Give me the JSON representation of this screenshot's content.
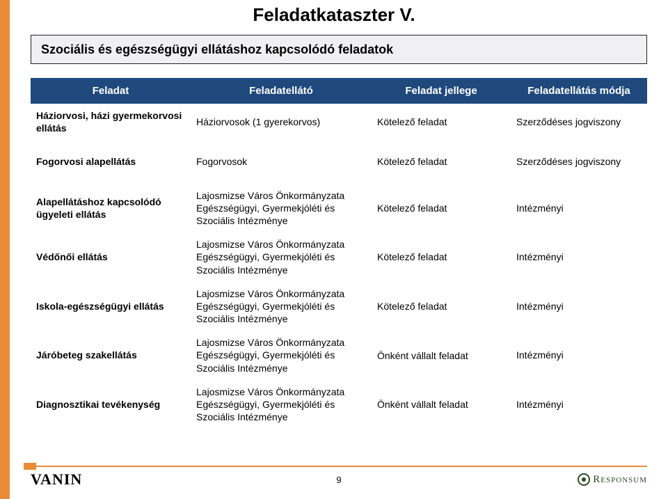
{
  "title": "Feladatkataszter V.",
  "subtitle": "Szociális és egészségügyi ellátáshoz kapcsolódó feladatok",
  "colors": {
    "accent_orange": "#e98c3a",
    "header_blue": "#1f497d",
    "subtitle_bg": "#f0f0f2",
    "text": "#000000",
    "responsum_green": "#2a4a24"
  },
  "columns": {
    "feladat": "Feladat",
    "ellato": "Feladatellátó",
    "jellege": "Feladat jellege",
    "modja": "Feladatellátás módja"
  },
  "rows": [
    {
      "feladat": "Háziorvosi, házi gyermekorvosi ellátás",
      "ellato": "Háziorvosok (1 gyerekorvos)",
      "jellege": "Kötelező feladat",
      "modja": "Szerződéses jogviszony",
      "spaced": false
    },
    {
      "feladat": "Fogorvosi alapellátás",
      "ellato": "Fogorvosok",
      "jellege": "Kötelező feladat",
      "modja": "Szerződéses jogviszony",
      "spaced": true
    },
    {
      "feladat": "Alapellátáshoz kapcsolódó ügyeleti ellátás",
      "ellato": "Lajosmizse Város Önkormányzata Egészségügyi, Gyermekjóléti és Szociális Intézménye",
      "jellege": "Kötelező feladat",
      "modja": "Intézményi",
      "spaced": true
    },
    {
      "feladat": "Védőnői ellátás",
      "ellato": "Lajosmizse Város Önkormányzata Egészségügyi, Gyermekjóléti és Szociális Intézménye",
      "jellege": "Kötelező feladat",
      "modja": "Intézményi",
      "spaced": false
    },
    {
      "feladat": "Iskola-egészségügyi ellátás",
      "ellato": "Lajosmizse Város Önkormányzata Egészségügyi, Gyermekjóléti és Szociális Intézménye",
      "jellege": "Kötelező feladat",
      "modja": "Intézményi",
      "spaced": false
    },
    {
      "feladat": "Járóbeteg szakellátás",
      "ellato": "Lajosmizse Város Önkormányzata Egészségügyi, Gyermekjóléti és Szociális Intézménye",
      "jellege": "Önként vállalt feladat",
      "modja": "Intézményi",
      "spaced": false
    },
    {
      "feladat": "Diagnosztikai tevékenység",
      "ellato": "Lajosmizse Város Önkormányzata Egészségügyi, Gyermekjóléti és Szociális Intézménye",
      "jellege": "Önként vállalt feladat",
      "modja": "Intézményi",
      "spaced": false
    }
  ],
  "footer": {
    "left_brand": "VANIN",
    "page_number": "9",
    "right_brand": "Responsum"
  }
}
